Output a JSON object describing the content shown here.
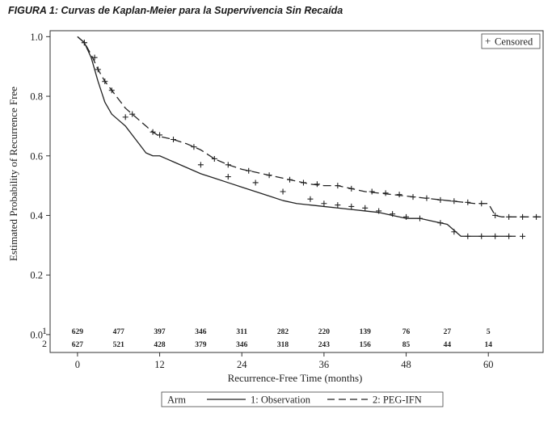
{
  "figure_title": "FIGURA 1: Curvas de Kaplan-Meier para la Supervivencia Sin Recaída",
  "chart_data": {
    "type": "line",
    "title": "FIGURA 1: Curvas de Kaplan-Meier para la Supervivencia Sin Recaída",
    "xlabel": "Recurrence-Free Time (months)",
    "ylabel": "Estimated Probability of Recurrence Free",
    "xlim": [
      -4,
      68
    ],
    "ylim": [
      -0.06,
      1.02
    ],
    "xticks": [
      0,
      12,
      24,
      36,
      48,
      60
    ],
    "xtick_labels": [
      "0",
      "12",
      "24",
      "36",
      "48",
      "60"
    ],
    "yticks": [
      0.0,
      0.2,
      0.4,
      0.6,
      0.8,
      1.0
    ],
    "ytick_labels": [
      "0.0",
      "0.2",
      "0.4",
      "0.6",
      "0.8",
      "1.0"
    ],
    "censored_legend": "Censored",
    "censored_symbol": "+",
    "series": [
      {
        "name": "1: Observation",
        "arm_label": "1",
        "style": "solid",
        "color": "#222222",
        "x": [
          0,
          1,
          2,
          3,
          4,
          5,
          6,
          7,
          8,
          9,
          10,
          11,
          12,
          13,
          14,
          16,
          18,
          20,
          22,
          24,
          26,
          28,
          30,
          32,
          34,
          36,
          38,
          40,
          42,
          44,
          46,
          48,
          50,
          52,
          54,
          55,
          56,
          58,
          60,
          62,
          64
        ],
        "y": [
          1.0,
          0.98,
          0.93,
          0.85,
          0.78,
          0.74,
          0.72,
          0.7,
          0.67,
          0.64,
          0.61,
          0.6,
          0.6,
          0.59,
          0.58,
          0.56,
          0.54,
          0.525,
          0.51,
          0.495,
          0.48,
          0.465,
          0.45,
          0.44,
          0.435,
          0.43,
          0.425,
          0.42,
          0.415,
          0.41,
          0.4,
          0.39,
          0.39,
          0.38,
          0.37,
          0.35,
          0.33,
          0.33,
          0.33,
          0.33,
          0.33
        ],
        "censored_x": [
          1,
          2.5,
          4,
          7,
          12,
          18,
          22,
          26,
          30,
          34,
          36,
          38,
          40,
          42,
          44,
          46,
          48,
          50,
          53,
          55,
          57,
          59,
          61,
          63,
          65
        ],
        "censored_y": [
          0.98,
          0.93,
          0.85,
          0.73,
          0.67,
          0.57,
          0.53,
          0.51,
          0.48,
          0.455,
          0.44,
          0.435,
          0.43,
          0.425,
          0.415,
          0.405,
          0.395,
          0.39,
          0.375,
          0.345,
          0.33,
          0.33,
          0.33,
          0.33,
          0.33
        ]
      },
      {
        "name": "2: PEG-IFN",
        "arm_label": "2",
        "style": "dashed",
        "color": "#222222",
        "x": [
          0,
          1,
          2,
          3,
          4,
          5,
          6,
          7,
          8,
          9,
          10,
          11,
          12,
          14,
          16,
          18,
          20,
          22,
          24,
          26,
          28,
          30,
          32,
          34,
          36,
          38,
          40,
          42,
          44,
          46,
          48,
          50,
          52,
          54,
          56,
          58,
          60,
          61,
          62,
          64,
          68
        ],
        "y": [
          1.0,
          0.98,
          0.94,
          0.89,
          0.85,
          0.82,
          0.79,
          0.76,
          0.74,
          0.72,
          0.7,
          0.68,
          0.665,
          0.655,
          0.64,
          0.62,
          0.59,
          0.57,
          0.555,
          0.545,
          0.535,
          0.525,
          0.515,
          0.505,
          0.5,
          0.5,
          0.49,
          0.48,
          0.475,
          0.47,
          0.465,
          0.46,
          0.455,
          0.45,
          0.445,
          0.44,
          0.44,
          0.4,
          0.395,
          0.395,
          0.395
        ],
        "censored_x": [
          1,
          3,
          5,
          8,
          11,
          14,
          17,
          20,
          22,
          25,
          28,
          31,
          33,
          35,
          38,
          40,
          43,
          45,
          47,
          49,
          51,
          53,
          55,
          57,
          59,
          61,
          63,
          65,
          67
        ],
        "censored_y": [
          0.98,
          0.89,
          0.82,
          0.74,
          0.68,
          0.655,
          0.63,
          0.59,
          0.57,
          0.55,
          0.535,
          0.52,
          0.51,
          0.505,
          0.5,
          0.49,
          0.48,
          0.475,
          0.47,
          0.462,
          0.458,
          0.452,
          0.448,
          0.444,
          0.44,
          0.4,
          0.395,
          0.395,
          0.395
        ]
      }
    ],
    "at_risk": {
      "times": [
        0,
        6,
        12,
        18,
        24,
        30,
        36,
        42,
        48,
        54,
        60
      ],
      "rows": [
        {
          "label": "1",
          "counts": [
            "629",
            "477",
            "397",
            "346",
            "311",
            "282",
            "220",
            "139",
            "76",
            "27",
            "5"
          ]
        },
        {
          "label": "2",
          "counts": [
            "627",
            "521",
            "428",
            "379",
            "346",
            "318",
            "243",
            "156",
            "85",
            "44",
            "14"
          ]
        }
      ]
    },
    "legend": {
      "title": "Arm",
      "position": "bottom",
      "entries": [
        {
          "label": "1: Observation",
          "style": "solid"
        },
        {
          "label": "2: PEG-IFN",
          "style": "dashed"
        }
      ]
    }
  }
}
